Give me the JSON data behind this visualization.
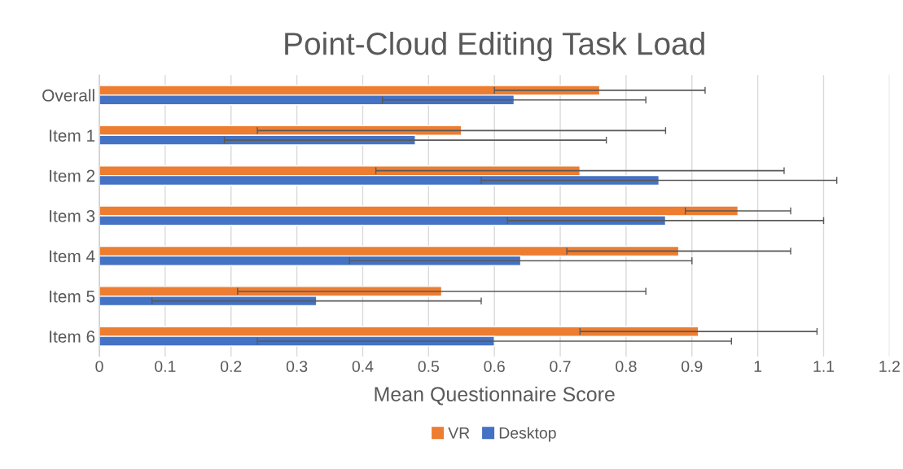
{
  "chart_data": {
    "type": "bar",
    "orientation": "horizontal",
    "title": "Point-Cloud Editing Task Load",
    "xlabel": "Mean Questionnaire Score",
    "categories": [
      "Overall",
      "Item 1",
      "Item 2",
      "Item 3",
      "Item 4",
      "Item 5",
      "Item 6"
    ],
    "series": [
      {
        "name": "VR",
        "color": "#ed7d31",
        "values": [
          0.76,
          0.55,
          0.73,
          0.97,
          0.88,
          0.52,
          0.91
        ],
        "errors": [
          [
            0.6,
            0.92
          ],
          [
            0.24,
            0.86
          ],
          [
            0.42,
            1.04
          ],
          [
            0.89,
            1.05
          ],
          [
            0.71,
            1.05
          ],
          [
            0.21,
            0.83
          ],
          [
            0.73,
            1.09
          ]
        ]
      },
      {
        "name": "Desktop",
        "color": "#4472c4",
        "values": [
          0.63,
          0.48,
          0.85,
          0.86,
          0.64,
          0.33,
          0.6
        ],
        "errors": [
          [
            0.43,
            0.83
          ],
          [
            0.19,
            0.77
          ],
          [
            0.58,
            1.12
          ],
          [
            0.62,
            1.1
          ],
          [
            0.38,
            0.9
          ],
          [
            0.08,
            0.58
          ],
          [
            0.24,
            0.96
          ]
        ]
      }
    ],
    "xlim": [
      0,
      1.2
    ],
    "xticks": [
      0,
      0.1,
      0.2,
      0.3,
      0.4,
      0.5,
      0.6,
      0.7,
      0.8,
      0.9,
      1,
      1.1,
      1.2
    ],
    "grid": "x",
    "legend": "bottom"
  }
}
